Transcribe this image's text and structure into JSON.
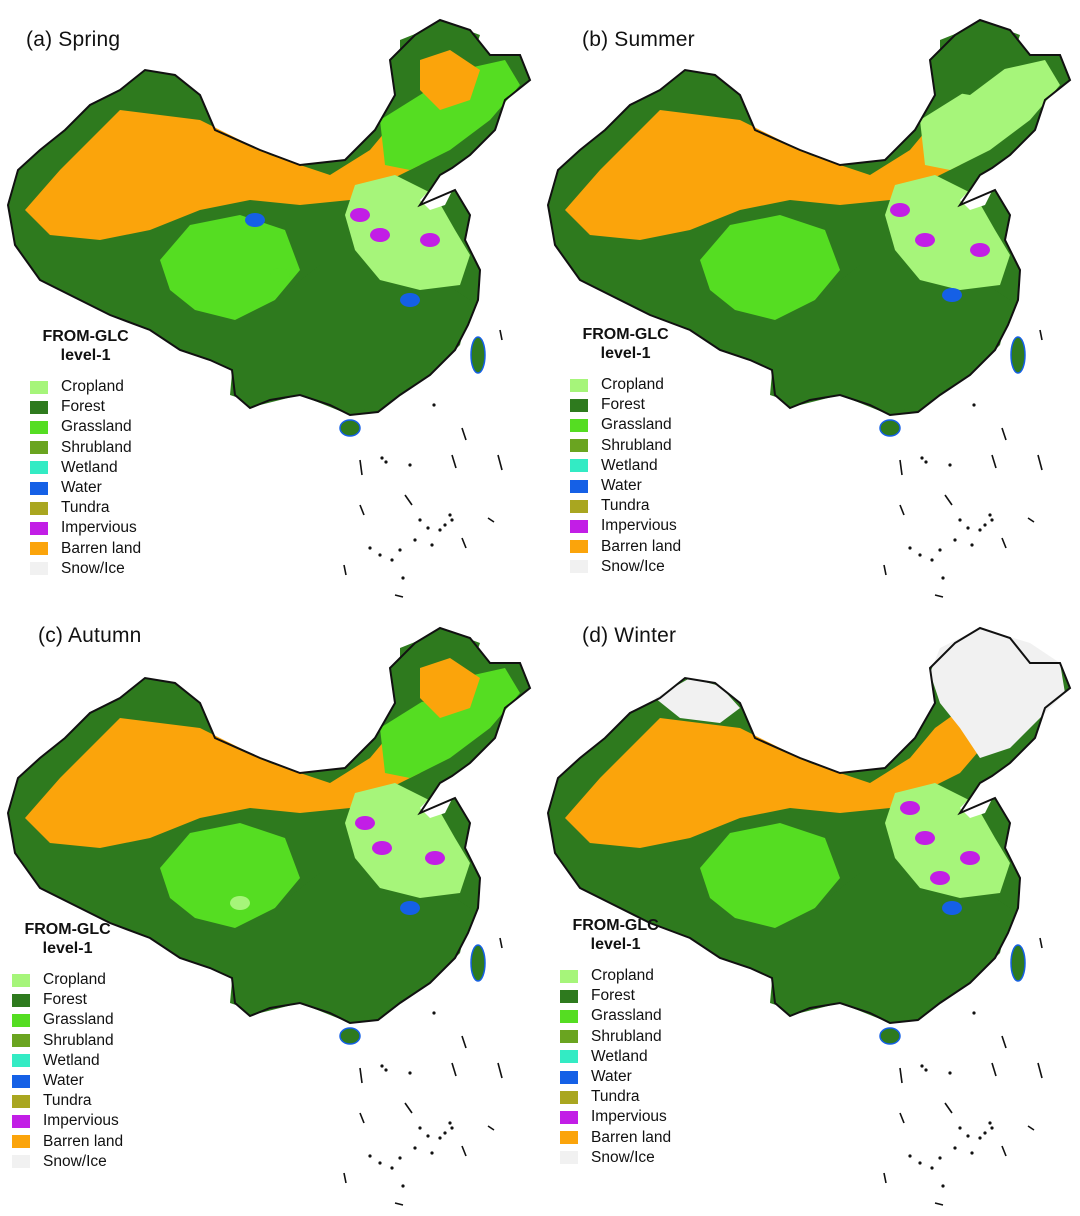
{
  "panels": [
    {
      "id": "a",
      "title": "(a) Spring",
      "season": "spring"
    },
    {
      "id": "b",
      "title": "(b) Summer",
      "season": "summer"
    },
    {
      "id": "c",
      "title": "(c) Autumn",
      "season": "autumn"
    },
    {
      "id": "d",
      "title": "(d) Winter",
      "season": "winter"
    }
  ],
  "legend": {
    "title_line1": "FROM-GLC",
    "title_line2": "level-1",
    "classes": [
      {
        "label": "Cropland",
        "color": "#a6f57a"
      },
      {
        "label": "Forest",
        "color": "#2e7a1e"
      },
      {
        "label": "Grassland",
        "color": "#55dd22"
      },
      {
        "label": "Shrubland",
        "color": "#6aa420"
      },
      {
        "label": "Wetland",
        "color": "#33ebc4"
      },
      {
        "label": "Water",
        "color": "#1560e6"
      },
      {
        "label": "Tundra",
        "color": "#a9a620"
      },
      {
        "label": "Impervious",
        "color": "#c21ee6"
      },
      {
        "label": "Barren land",
        "color": "#fba40b"
      },
      {
        "label": "Snow/Ice",
        "color": "#f1f1f1"
      }
    ]
  }
}
